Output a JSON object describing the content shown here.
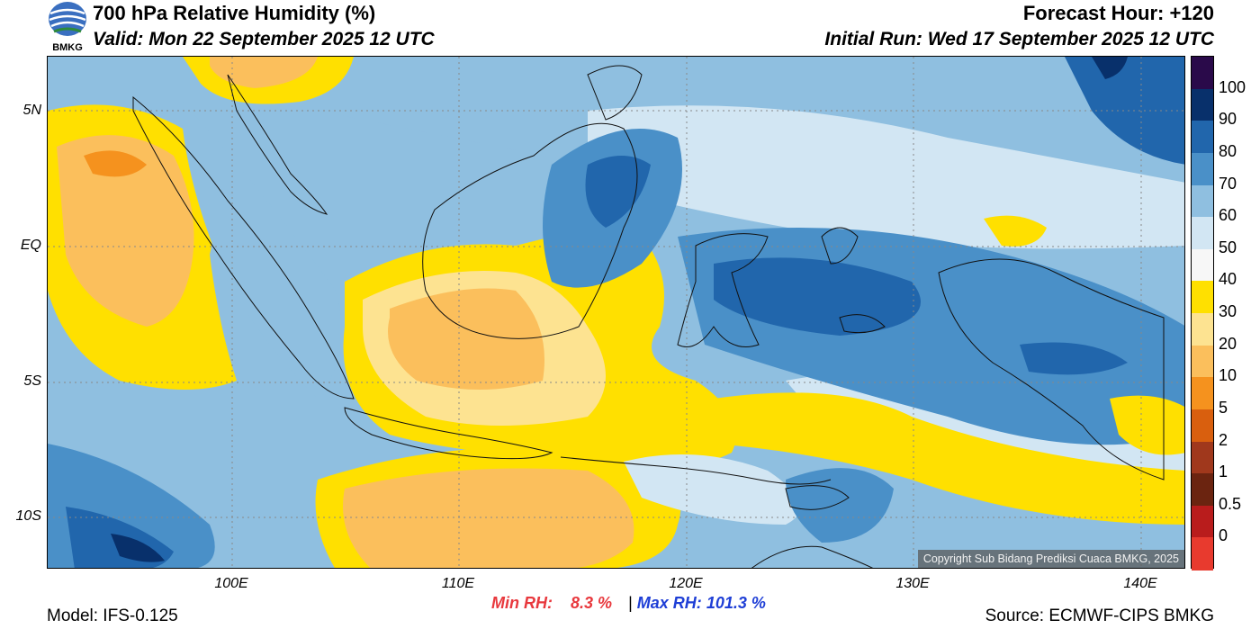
{
  "header": {
    "title": "700 hPa Relative Humidity (%)",
    "valid": "Valid: Mon 22 September 2025 12 UTC",
    "forecast_hour": "Forecast Hour: +120",
    "initial_run": "Initial Run: Wed 17 September 2025 12 UTC",
    "logo_text": "BMKG"
  },
  "map": {
    "lat_ticks": [
      "5N",
      "EQ",
      "5S",
      "10S"
    ],
    "lon_ticks": [
      "100E",
      "110E",
      "120E",
      "130E",
      "140E"
    ],
    "copyright": "Copyright Sub Bidang Prediksi Cuaca BMKG, 2025"
  },
  "colorbar": {
    "labels": [
      "100",
      "90",
      "80",
      "70",
      "60",
      "50",
      "40",
      "30",
      "20",
      "10",
      "5",
      "2",
      "1",
      "0.5",
      "0"
    ],
    "colors": [
      "#2a0a4a",
      "#08306b",
      "#2166ac",
      "#4a90c8",
      "#8fbfe0",
      "#d2e6f3",
      "#f7f7f7",
      "#ffe000",
      "#fde391",
      "#fbbf5c",
      "#f5921e",
      "#d95f0e",
      "#a0381c",
      "#6b2410",
      "#b91c1c",
      "#e83a2e"
    ]
  },
  "stats": {
    "min_label": "Min RH:",
    "min_value": "8.3 %",
    "separator": "|",
    "max_label": "Max RH:",
    "max_value": "101.3 %",
    "min_color": "#e8383d",
    "max_color": "#1f3fd6"
  },
  "footer": {
    "model": "Model: IFS-0.125",
    "source": "Source: ECMWF-CIPS BMKG"
  }
}
